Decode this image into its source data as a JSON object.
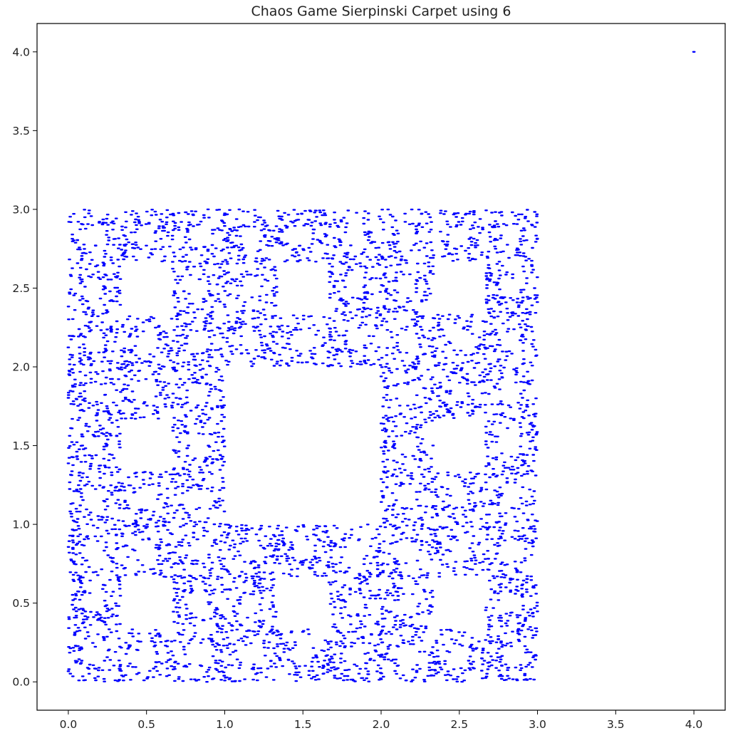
{
  "chart_data": {
    "type": "scatter",
    "title": "Chaos Game Sierpinski Carpet using 6",
    "xlabel": "",
    "ylabel": "",
    "xlim": [
      -0.2,
      4.2
    ],
    "ylim": [
      -0.18,
      4.18
    ],
    "x_ticks": [
      0.0,
      0.5,
      1.0,
      1.5,
      2.0,
      2.5,
      3.0,
      3.5,
      4.0
    ],
    "y_ticks": [
      0.0,
      0.5,
      1.0,
      1.5,
      2.0,
      2.5,
      3.0,
      3.5,
      4.0
    ],
    "x_tick_labels": [
      "0.0",
      "0.5",
      "1.0",
      "1.5",
      "2.0",
      "2.5",
      "3.0",
      "3.5",
      "4.0"
    ],
    "y_tick_labels": [
      "0.0",
      "0.5",
      "1.0",
      "1.5",
      "2.0",
      "2.5",
      "3.0",
      "3.5",
      "4.0"
    ],
    "grid": false,
    "series": [
      {
        "marker": "point",
        "color": "#0000ff",
        "description": "Sierpinski carpet attractor on [0,3] x [0,3], removed middle squares at levels 1-4",
        "attractor": {
          "x_range": [
            0,
            3
          ],
          "y_range": [
            0,
            3
          ],
          "levels": 4,
          "approx_points": 60000
        }
      },
      {
        "marker": "point",
        "color": "#0000ff",
        "points": [
          [
            4.0,
            4.0
          ]
        ]
      }
    ]
  }
}
